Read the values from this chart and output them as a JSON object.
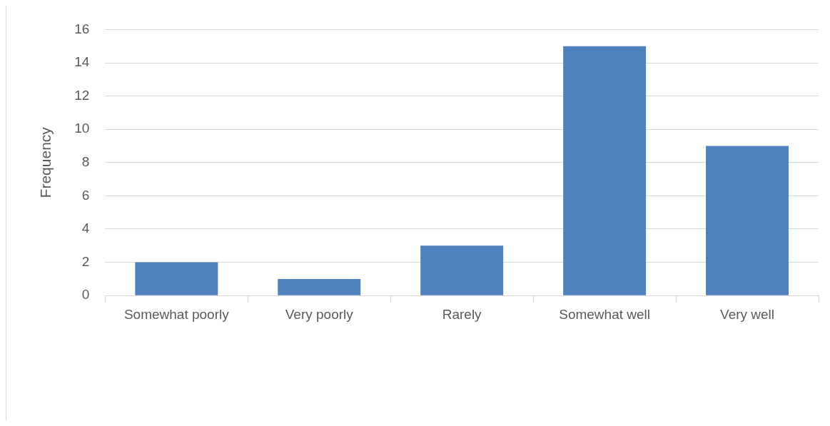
{
  "chart_data": {
    "type": "bar",
    "ylabel": "Frequency",
    "categories": [
      "Somewhat poorly",
      "Very poorly",
      "Rarely",
      "Somewhat well",
      "Very well"
    ],
    "values": [
      2,
      1,
      3,
      15,
      9
    ],
    "color": "#4f81bd",
    "ylim": [
      0,
      16
    ],
    "yticks": [
      0,
      2,
      4,
      6,
      8,
      10,
      12,
      14,
      16
    ],
    "grid": "y"
  }
}
